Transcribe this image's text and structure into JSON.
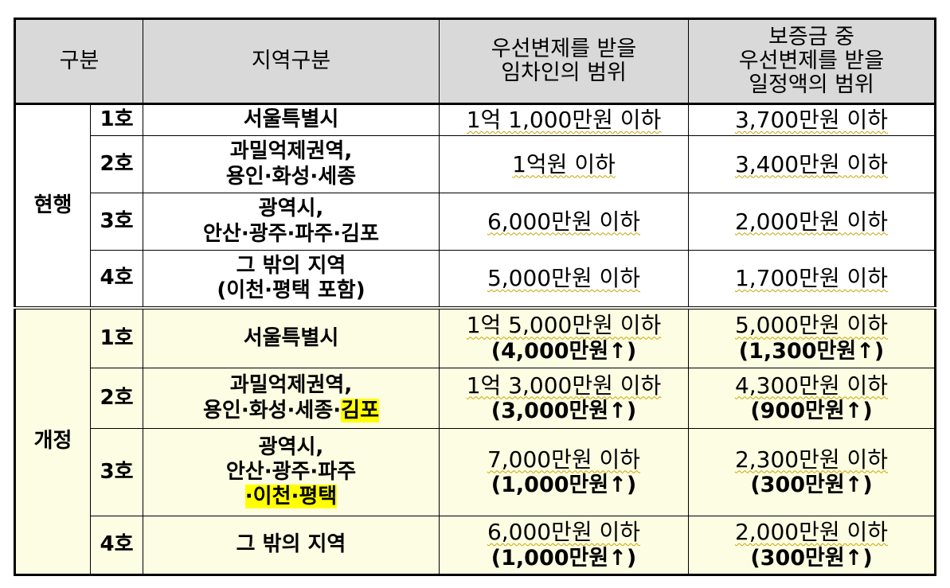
{
  "header": {
    "col_category": "구분",
    "col_region": "지역구분",
    "col_tenant_range_line1": "우선변제를 받을",
    "col_tenant_range_line2": "임차인의 범위",
    "col_amount_range_line1": "보증금 중",
    "col_amount_range_line2": "우선변제를 받을",
    "col_amount_range_line3": "일정액의 범위"
  },
  "groups": {
    "current": "현행",
    "revised": "개정"
  },
  "current_rows": [
    {
      "no": "1호",
      "region_line1": "서울특별시",
      "region_line2": "",
      "tenant": "1억 1,000만원 이하",
      "amount": "3,700만원 이하"
    },
    {
      "no": "2호",
      "region_line1": "과밀억제권역,",
      "region_line2": "용인·화성·세종",
      "tenant": "1억원 이하",
      "amount": "3,400만원 이하"
    },
    {
      "no": "3호",
      "region_line1": "광역시,",
      "region_line2": "안산·광주·파주·김포",
      "tenant": "6,000만원 이하",
      "amount": "2,000만원 이하"
    },
    {
      "no": "4호",
      "region_line1": "그 밖의 지역",
      "region_line2": "(이천·평택 포함)",
      "tenant": "5,000만원 이하",
      "amount": "1,700만원 이하"
    }
  ],
  "revised_rows": [
    {
      "no": "1호",
      "region_line1": "서울특별시",
      "tenant": "1억 5,000만원 이하",
      "tenant_change": "(4,000만원↑)",
      "amount": "5,000만원 이하",
      "amount_change": "(1,300만원↑)"
    },
    {
      "no": "2호",
      "region_line1": "과밀억제권역,",
      "region_line2": "용인·화성·세종·",
      "region_highlight": "김포",
      "tenant": "1억 3,000만원 이하",
      "tenant_change": "(3,000만원↑)",
      "amount": "4,300만원 이하",
      "amount_change": "(900만원↑)"
    },
    {
      "no": "3호",
      "region_line1": "광역시,",
      "region_line2": "안산·광주·파주",
      "region_highlight": "·이천·평택",
      "tenant": "7,000만원 이하",
      "tenant_change": "(1,000만원↑)",
      "amount": "2,300만원 이하",
      "amount_change": "(300만원↑)"
    },
    {
      "no": "4호",
      "region_line1": "그 밖의 지역",
      "tenant": "6,000만원 이하",
      "tenant_change": "(1,000만원↑)",
      "amount": "2,000만원 이하",
      "amount_change": "(300만원↑)"
    }
  ],
  "colors": {
    "header_bg": "#d9d9d9",
    "revised_bg": "#fdfde3",
    "highlight": "#ffff00"
  }
}
